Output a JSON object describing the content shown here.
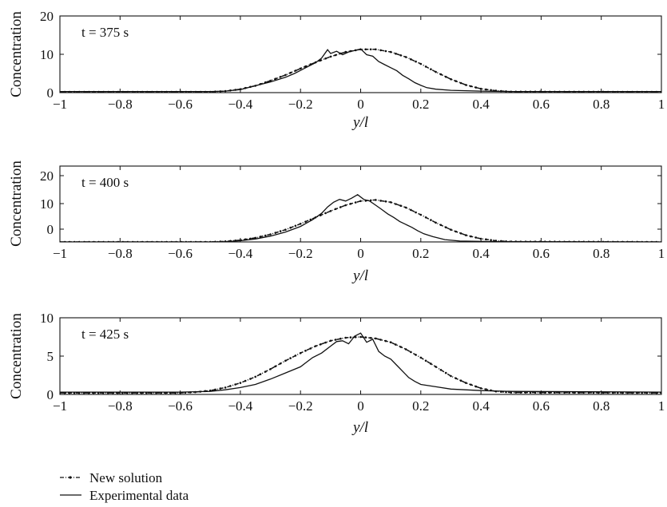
{
  "chart_data": [
    {
      "type": "line",
      "annotation": "t = 375 s",
      "xlabel": "y/l",
      "ylabel": "Concentration",
      "xlim": [
        -1,
        1
      ],
      "ylim": [
        0,
        20
      ],
      "xticks": [
        "−1",
        "−0.8",
        "−0.6",
        "−0.4",
        "−0.2",
        "0",
        "0.2",
        "0.4",
        "0.6",
        "0.8",
        "1"
      ],
      "yticks": [
        "0",
        "10",
        "20"
      ],
      "grid": false,
      "series": [
        {
          "name": "New solution",
          "style": "dash-dot-marker",
          "values": [
            [
              -1,
              0.2
            ],
            [
              -0.5,
              0.2
            ],
            [
              -0.45,
              0.4
            ],
            [
              -0.4,
              0.9
            ],
            [
              -0.35,
              1.8
            ],
            [
              -0.3,
              3.1
            ],
            [
              -0.25,
              4.6
            ],
            [
              -0.2,
              6.3
            ],
            [
              -0.15,
              7.9
            ],
            [
              -0.1,
              9.4
            ],
            [
              -0.05,
              10.6
            ],
            [
              0,
              11.3
            ],
            [
              0.05,
              11.3
            ],
            [
              0.1,
              10.6
            ],
            [
              0.15,
              9.3
            ],
            [
              0.2,
              7.5
            ],
            [
              0.25,
              5.4
            ],
            [
              0.3,
              3.5
            ],
            [
              0.35,
              2.0
            ],
            [
              0.4,
              1.0
            ],
            [
              0.45,
              0.5
            ],
            [
              0.5,
              0.25
            ],
            [
              1,
              0.2
            ]
          ]
        },
        {
          "name": "Experimental data",
          "style": "solid",
          "values": [
            [
              -1,
              0.3
            ],
            [
              -0.5,
              0.3
            ],
            [
              -0.45,
              0.4
            ],
            [
              -0.4,
              0.8
            ],
            [
              -0.35,
              1.8
            ],
            [
              -0.3,
              2.8
            ],
            [
              -0.25,
              4.0
            ],
            [
              -0.22,
              5.0
            ],
            [
              -0.2,
              5.8
            ],
            [
              -0.18,
              6.6
            ],
            [
              -0.15,
              7.8
            ],
            [
              -0.13,
              9.0
            ],
            [
              -0.11,
              11.2
            ],
            [
              -0.1,
              10.2
            ],
            [
              -0.08,
              10.8
            ],
            [
              -0.06,
              9.9
            ],
            [
              -0.04,
              10.6
            ],
            [
              -0.02,
              11.0
            ],
            [
              0,
              11.4
            ],
            [
              0.02,
              9.9
            ],
            [
              0.04,
              9.5
            ],
            [
              0.06,
              8.1
            ],
            [
              0.08,
              7.3
            ],
            [
              0.1,
              6.5
            ],
            [
              0.12,
              5.7
            ],
            [
              0.14,
              4.5
            ],
            [
              0.16,
              3.6
            ],
            [
              0.18,
              2.6
            ],
            [
              0.2,
              1.9
            ],
            [
              0.22,
              1.3
            ],
            [
              0.25,
              0.9
            ],
            [
              0.3,
              0.6
            ],
            [
              0.4,
              0.4
            ],
            [
              0.5,
              0.3
            ],
            [
              1,
              0.3
            ]
          ]
        }
      ]
    },
    {
      "type": "line",
      "annotation": "t = 400 s",
      "xlabel": "y/l",
      "ylabel": "Concentration",
      "xlim": [
        -1,
        1
      ],
      "ylim": [
        -5,
        21
      ],
      "xticks": [
        "−1",
        "−0.8",
        "−0.6",
        "−0.4",
        "−0.2",
        "0",
        "0.2",
        "0.4",
        "0.6",
        "0.8",
        "1"
      ],
      "yticks": [
        "0",
        "10",
        "20"
      ],
      "grid": false,
      "series": [
        {
          "name": "New solution",
          "style": "dash-dot-marker",
          "values": [
            [
              -1,
              -5
            ],
            [
              -0.5,
              -5
            ],
            [
              -0.45,
              -4.8
            ],
            [
              -0.4,
              -4.4
            ],
            [
              -0.35,
              -3.6
            ],
            [
              -0.3,
              -2.4
            ],
            [
              -0.25,
              -0.8
            ],
            [
              -0.2,
              1.2
            ],
            [
              -0.15,
              3.4
            ],
            [
              -0.1,
              5.6
            ],
            [
              -0.05,
              7.6
            ],
            [
              0,
              9.0
            ],
            [
              0.05,
              9.4
            ],
            [
              0.1,
              8.6
            ],
            [
              0.15,
              6.8
            ],
            [
              0.2,
              4.3
            ],
            [
              0.25,
              1.6
            ],
            [
              0.3,
              -0.8
            ],
            [
              0.35,
              -2.7
            ],
            [
              0.4,
              -3.9
            ],
            [
              0.45,
              -4.6
            ],
            [
              0.5,
              -4.9
            ],
            [
              1,
              -5
            ]
          ]
        },
        {
          "name": "Experimental data",
          "style": "solid",
          "values": [
            [
              -1,
              -5
            ],
            [
              -0.5,
              -5
            ],
            [
              -0.45,
              -4.9
            ],
            [
              -0.4,
              -4.6
            ],
            [
              -0.35,
              -4.0
            ],
            [
              -0.3,
              -3.0
            ],
            [
              -0.25,
              -1.6
            ],
            [
              -0.2,
              0.3
            ],
            [
              -0.16,
              2.6
            ],
            [
              -0.13,
              4.8
            ],
            [
              -0.11,
              7.0
            ],
            [
              -0.09,
              8.6
            ],
            [
              -0.07,
              9.6
            ],
            [
              -0.05,
              9.0
            ],
            [
              -0.03,
              10.0
            ],
            [
              -0.01,
              11.2
            ],
            [
              0.01,
              9.6
            ],
            [
              0.03,
              9.0
            ],
            [
              0.05,
              7.6
            ],
            [
              0.07,
              6.1
            ],
            [
              0.09,
              4.6
            ],
            [
              0.11,
              3.4
            ],
            [
              0.13,
              2.0
            ],
            [
              0.15,
              1.0
            ],
            [
              0.17,
              0.0
            ],
            [
              0.19,
              -1.2
            ],
            [
              0.21,
              -2.2
            ],
            [
              0.24,
              -3.2
            ],
            [
              0.28,
              -4.2
            ],
            [
              0.33,
              -4.7
            ],
            [
              0.45,
              -4.9
            ],
            [
              1,
              -5
            ]
          ]
        }
      ]
    },
    {
      "type": "line",
      "annotation": "t = 425 s",
      "xlabel": "y/l",
      "ylabel": "Concentration",
      "xlim": [
        -1,
        1
      ],
      "ylim": [
        0,
        10
      ],
      "xticks": [
        "−1",
        "−0.8",
        "−0.6",
        "−0.4",
        "−0.2",
        "0",
        "0.2",
        "0.4",
        "0.6",
        "0.8",
        "1"
      ],
      "yticks": [
        "0",
        "5",
        "10"
      ],
      "grid": false,
      "series": [
        {
          "name": "New solution",
          "style": "dash-dot-marker",
          "values": [
            [
              -1,
              0.2
            ],
            [
              -0.6,
              0.2
            ],
            [
              -0.55,
              0.3
            ],
            [
              -0.5,
              0.5
            ],
            [
              -0.45,
              0.9
            ],
            [
              -0.4,
              1.5
            ],
            [
              -0.35,
              2.3
            ],
            [
              -0.3,
              3.3
            ],
            [
              -0.25,
              4.4
            ],
            [
              -0.2,
              5.4
            ],
            [
              -0.15,
              6.3
            ],
            [
              -0.1,
              7.0
            ],
            [
              -0.05,
              7.4
            ],
            [
              0,
              7.5
            ],
            [
              0.05,
              7.3
            ],
            [
              0.1,
              6.8
            ],
            [
              0.15,
              5.9
            ],
            [
              0.2,
              4.8
            ],
            [
              0.25,
              3.6
            ],
            [
              0.3,
              2.4
            ],
            [
              0.35,
              1.5
            ],
            [
              0.4,
              0.8
            ],
            [
              0.45,
              0.4
            ],
            [
              0.5,
              0.25
            ],
            [
              1,
              0.2
            ]
          ]
        },
        {
          "name": "Experimental data",
          "style": "solid",
          "values": [
            [
              -1,
              0.3
            ],
            [
              -0.6,
              0.3
            ],
            [
              -0.5,
              0.4
            ],
            [
              -0.45,
              0.6
            ],
            [
              -0.4,
              0.9
            ],
            [
              -0.35,
              1.3
            ],
            [
              -0.3,
              2.0
            ],
            [
              -0.25,
              2.8
            ],
            [
              -0.2,
              3.6
            ],
            [
              -0.16,
              4.8
            ],
            [
              -0.13,
              5.4
            ],
            [
              -0.1,
              6.3
            ],
            [
              -0.08,
              6.9
            ],
            [
              -0.06,
              7.0
            ],
            [
              -0.04,
              6.6
            ],
            [
              -0.02,
              7.6
            ],
            [
              0,
              8.0
            ],
            [
              0.02,
              6.8
            ],
            [
              0.04,
              7.2
            ],
            [
              0.06,
              5.6
            ],
            [
              0.08,
              5.0
            ],
            [
              0.1,
              4.6
            ],
            [
              0.12,
              3.8
            ],
            [
              0.14,
              3.0
            ],
            [
              0.16,
              2.2
            ],
            [
              0.18,
              1.7
            ],
            [
              0.2,
              1.3
            ],
            [
              0.25,
              1.0
            ],
            [
              0.3,
              0.7
            ],
            [
              0.4,
              0.5
            ],
            [
              0.5,
              0.4
            ],
            [
              1,
              0.3
            ]
          ]
        }
      ]
    }
  ],
  "legend": [
    {
      "label": "New solution",
      "style": "dash-dot-marker"
    },
    {
      "label": "Experimental data",
      "style": "solid"
    }
  ],
  "colors": {
    "line": "#111111",
    "background": "#ffffff"
  }
}
